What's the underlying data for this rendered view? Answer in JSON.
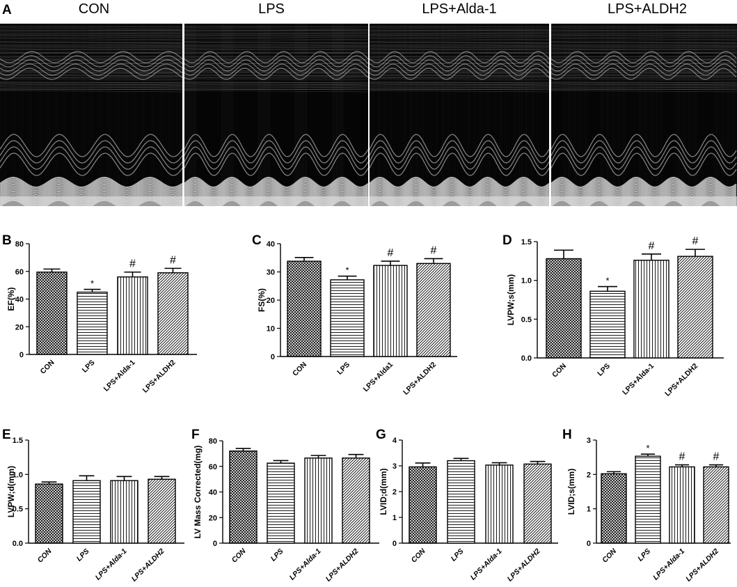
{
  "panel_a": {
    "letter": "A",
    "images": [
      {
        "title": "CON"
      },
      {
        "title": "LPS"
      },
      {
        "title": "LPS+Alda-1"
      },
      {
        "title": "LPS+ALDH2"
      }
    ]
  },
  "chart_data": [
    {
      "panel": "B",
      "type": "bar",
      "categories": [
        "CON",
        "LPS",
        "LPS+Alda-1",
        "LPS+ALDH2"
      ],
      "values": [
        59.5,
        45,
        56,
        59
      ],
      "errors": [
        2.2,
        2,
        3.5,
        3.2
      ],
      "annotations": [
        "",
        "*",
        "#",
        "#"
      ],
      "ylabel": "EF(%)",
      "ylim": [
        0,
        80
      ],
      "yticks": [
        0,
        20,
        40,
        60,
        80
      ],
      "ytick_labels": [
        "0",
        "20",
        "40",
        "60",
        "80"
      ],
      "tick_style": "bold",
      "grid": false
    },
    {
      "panel": "C",
      "type": "bar",
      "categories": [
        "CON",
        "LPS",
        "LPS+Alda1",
        "LPS+ALDH2"
      ],
      "values": [
        33.8,
        27.2,
        32.3,
        33
      ],
      "errors": [
        1.3,
        1.3,
        1.5,
        1.7
      ],
      "annotations": [
        "",
        "*",
        "#",
        "#"
      ],
      "ylabel": "FS(%)",
      "ylim": [
        0,
        40
      ],
      "yticks": [
        0,
        10,
        20,
        30,
        40
      ],
      "ytick_labels": [
        "0",
        "10",
        "20",
        "30",
        "40"
      ],
      "tick_style": "bold",
      "grid": false
    },
    {
      "panel": "D",
      "type": "bar",
      "categories": [
        "CON",
        "LPS",
        "LPS+Alda-1",
        "LPS+ALDH2"
      ],
      "values": [
        1.28,
        0.86,
        1.26,
        1.31
      ],
      "errors": [
        0.11,
        0.06,
        0.08,
        0.09
      ],
      "annotations": [
        "",
        "*",
        "#",
        "#"
      ],
      "ylabel": "LVPW;s(mm)",
      "ylim": [
        0,
        1.5
      ],
      "yticks": [
        0,
        0.5,
        1,
        1.5
      ],
      "ytick_labels": [
        "0.0",
        "0.5",
        "1.0",
        "1.5"
      ],
      "tick_style": "bold",
      "grid": false
    },
    {
      "panel": "E",
      "type": "bar",
      "categories": [
        "CON",
        "LPS",
        "LPS+Alda-1",
        "LPS+ALDH2"
      ],
      "values": [
        0.86,
        0.91,
        0.91,
        0.93
      ],
      "errors": [
        0.03,
        0.07,
        0.06,
        0.04
      ],
      "annotations": [
        "",
        "",
        "",
        ""
      ],
      "ylabel": "LVPW;d(mm)",
      "ylim": [
        0,
        1.5
      ],
      "yticks": [
        0,
        0.5,
        1,
        1.5
      ],
      "ytick_labels": [
        "0.0",
        "0.5",
        "1.0",
        "1.5"
      ],
      "tick_style": "italic",
      "grid": false
    },
    {
      "panel": "F",
      "type": "bar",
      "categories": [
        "CON",
        "LPS",
        "LPS+Alda-1",
        "LPS+ALDH2"
      ],
      "values": [
        72,
        62.5,
        66.5,
        66.5
      ],
      "errors": [
        2,
        2,
        2,
        2.8
      ],
      "annotations": [
        "",
        "",
        "",
        ""
      ],
      "ylabel": "LV Mass Corrected(mg)",
      "ylim": [
        0,
        80
      ],
      "yticks": [
        0,
        20,
        40,
        60,
        80
      ],
      "ytick_labels": [
        "0",
        "20",
        "40",
        "60",
        "80"
      ],
      "tick_style": "italic",
      "grid": false
    },
    {
      "panel": "G",
      "type": "bar",
      "categories": [
        "CON",
        "LPS",
        "LPS+Alda-1",
        "LPS+ALDH2"
      ],
      "values": [
        2.96,
        3.2,
        3.03,
        3.07
      ],
      "errors": [
        0.15,
        0.09,
        0.09,
        0.1
      ],
      "annotations": [
        "",
        "",
        "",
        ""
      ],
      "ylabel": "LVID;d(mm)",
      "ylim": [
        0,
        4
      ],
      "yticks": [
        0,
        1,
        2,
        3,
        4
      ],
      "ytick_labels": [
        "0",
        "1",
        "2",
        "3",
        "4"
      ],
      "tick_style": "italic",
      "grid": false
    },
    {
      "panel": "H",
      "type": "bar",
      "categories": [
        "CON",
        "LPS",
        "LPS+Alda-1",
        "LPS+ALDH2"
      ],
      "values": [
        2.02,
        2.53,
        2.22,
        2.22
      ],
      "errors": [
        0.06,
        0.06,
        0.06,
        0.06
      ],
      "annotations": [
        "",
        "*",
        "#",
        "#"
      ],
      "ylabel": "LVID;s(mm)",
      "ylim": [
        0,
        3
      ],
      "yticks": [
        0,
        1,
        2,
        3
      ],
      "ytick_labels": [
        "0",
        "1",
        "2",
        "3"
      ],
      "tick_style": "italic",
      "grid": false
    }
  ]
}
